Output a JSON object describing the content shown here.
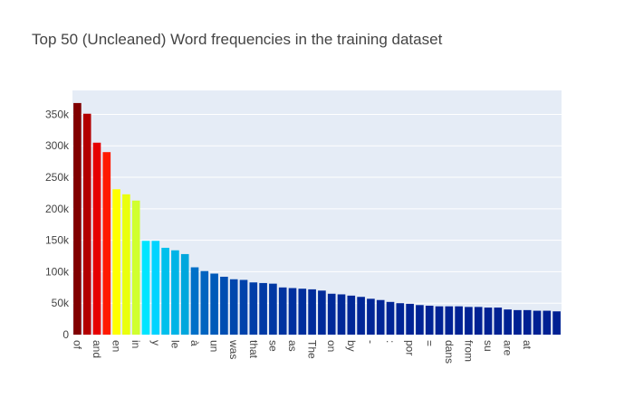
{
  "chart_data": {
    "type": "bar",
    "title": "Top 50 (Uncleaned) Word frequencies in the training dataset",
    "xlabel": "",
    "ylabel": "",
    "ylim": [
      0,
      388000
    ],
    "y_ticks": [
      0,
      50000,
      100000,
      150000,
      200000,
      250000,
      300000,
      350000
    ],
    "y_tick_labels": [
      "0",
      "50k",
      "100k",
      "150k",
      "200k",
      "250k",
      "300k",
      "350k"
    ],
    "grid": true,
    "legend": "none",
    "categories": [
      "of",
      "",
      "and",
      "",
      "en",
      "",
      "in",
      "",
      "y",
      "",
      "le",
      "",
      "à",
      "",
      "un",
      "",
      "was",
      "",
      "that",
      "",
      "se",
      "",
      "as",
      "",
      "The",
      "",
      "on",
      "",
      "by",
      "",
      "-",
      "",
      ":",
      "",
      "por",
      "",
      "=",
      "",
      "dans",
      "",
      "from",
      "",
      "su",
      "",
      "are",
      "",
      "at",
      "",
      "",
      ""
    ],
    "x_tick_labels": [
      "of",
      "and",
      "en",
      "in",
      "y",
      "le",
      "à",
      "un",
      "was",
      "that",
      "se",
      "as",
      "The",
      "on",
      "by",
      "-",
      ":",
      "por",
      "=",
      "dans",
      "from",
      "su",
      "are",
      "at"
    ],
    "values": [
      368000,
      351000,
      305000,
      290000,
      231000,
      223000,
      213000,
      149000,
      149000,
      138000,
      134000,
      128000,
      107000,
      101000,
      97000,
      92000,
      88000,
      87000,
      83000,
      82000,
      81000,
      75000,
      74000,
      73000,
      72000,
      70000,
      65000,
      64000,
      62000,
      60000,
      57000,
      55000,
      52000,
      50000,
      49000,
      47000,
      46000,
      45000,
      45000,
      45000,
      44000,
      44000,
      43000,
      43000,
      40000,
      39000,
      39000,
      38000,
      38000,
      37000
    ],
    "colors": [
      "#800000",
      "#b30000",
      "#e60000",
      "#ff1a00",
      "#ffff00",
      "#eaff0d",
      "#d0ff2f",
      "#00e5ff",
      "#00d4ff",
      "#00c0ec",
      "#00b4e6",
      "#00a7dd",
      "#0070c8",
      "#0064c0",
      "#005ab9",
      "#004eb2",
      "#0047ad",
      "#0042ab",
      "#003ea8",
      "#003aa5",
      "#0037a3",
      "#0033a0",
      "#00309f",
      "#002e9d",
      "#002c9b",
      "#002a9a",
      "#002999",
      "#002898",
      "#002797",
      "#002697",
      "#002596",
      "#002596",
      "#002495",
      "#002495",
      "#002395",
      "#002395",
      "#002394",
      "#002294",
      "#002294",
      "#002294",
      "#002294",
      "#002193",
      "#002193",
      "#002193",
      "#002193",
      "#002193",
      "#002093",
      "#002093",
      "#002093",
      "#002093"
    ]
  }
}
